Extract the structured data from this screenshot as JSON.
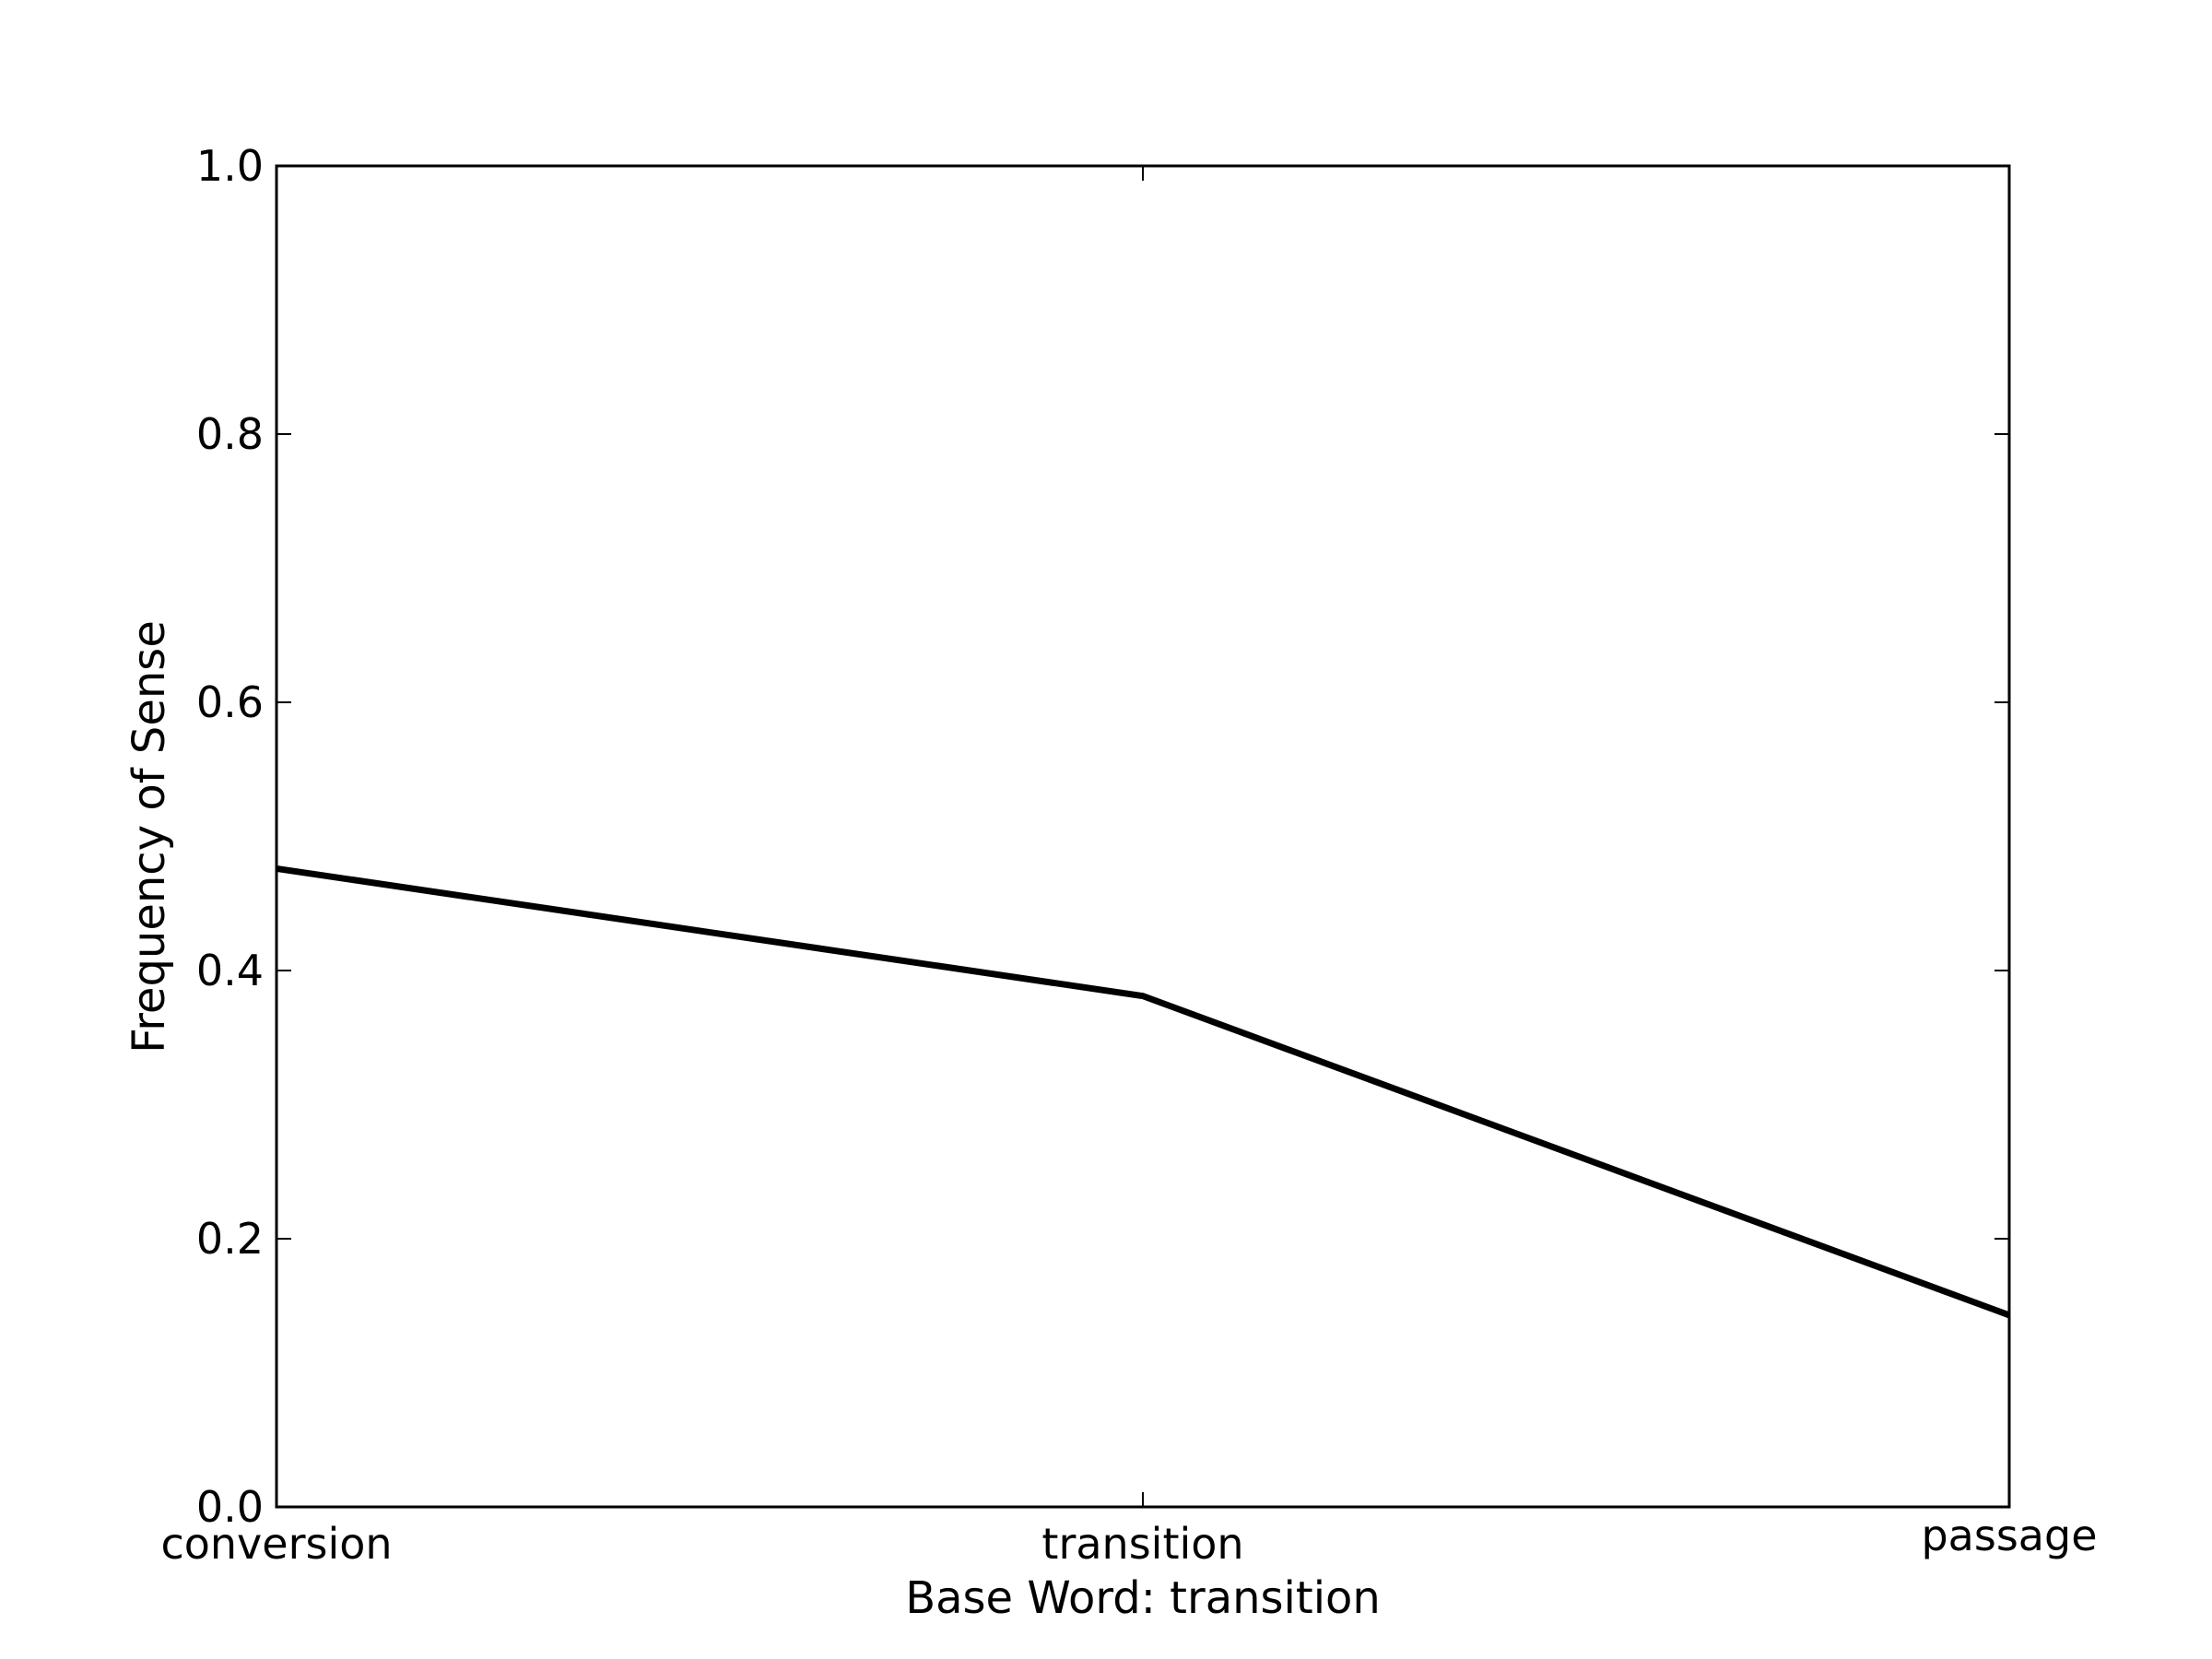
{
  "chart_data": {
    "type": "line",
    "title": "",
    "xlabel": "Base Word: transition",
    "ylabel": "Frequency of Sense",
    "categories": [
      "conversion",
      "transition",
      "passage"
    ],
    "series": [
      {
        "values": [
          0.476,
          0.381,
          0.143
        ]
      }
    ],
    "ylim": [
      0,
      1.0
    ],
    "yticks": [
      "0.0",
      "0.2",
      "0.4",
      "0.6",
      "0.8",
      "1.0"
    ],
    "grid": false,
    "legend": "none",
    "colors": {
      "line": "#000000",
      "axes": "#000000",
      "background": "#ffffff"
    }
  }
}
